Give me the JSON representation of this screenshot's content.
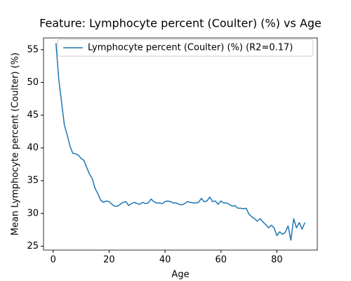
{
  "chart_data": {
    "type": "line",
    "title": "Feature: Lymphocyte percent (Coulter) (%) vs Age",
    "xlabel": "Age",
    "ylabel": "Mean Lymphocyte percent (Coulter) (%)",
    "x": [
      1,
      2,
      3,
      4,
      5,
      6,
      7,
      8,
      9,
      10,
      11,
      12,
      13,
      14,
      15,
      16,
      17,
      18,
      19,
      20,
      21,
      22,
      23,
      24,
      25,
      26,
      27,
      28,
      29,
      30,
      31,
      32,
      33,
      34,
      35,
      36,
      37,
      38,
      39,
      40,
      41,
      42,
      43,
      44,
      45,
      46,
      47,
      48,
      49,
      50,
      51,
      52,
      53,
      54,
      55,
      56,
      57,
      58,
      59,
      60,
      61,
      62,
      63,
      64,
      65,
      66,
      67,
      68,
      69,
      70,
      71,
      72,
      73,
      74,
      75,
      76,
      77,
      78,
      79,
      80,
      81,
      82,
      83,
      84,
      85,
      86,
      87,
      88,
      89,
      90
    ],
    "series": [
      {
        "name": "Lymphocyte percent (Coulter) (%) (R2=0.17)",
        "color": "#1f77b4",
        "values": [
          56,
          50.5,
          47,
          43.5,
          42,
          40.3,
          39.2,
          39.1,
          38.9,
          38.4,
          38.1,
          37,
          36,
          35.3,
          33.8,
          33,
          32,
          31.7,
          31.9,
          31.8,
          31.4,
          31.1,
          31.1,
          31.4,
          31.7,
          31.8,
          31.2,
          31.5,
          31.7,
          31.5,
          31.4,
          31.7,
          31.5,
          31.6,
          32.2,
          31.8,
          31.6,
          31.6,
          31.5,
          31.8,
          31.9,
          31.8,
          31.6,
          31.6,
          31.4,
          31.3,
          31.5,
          31.8,
          31.7,
          31.6,
          31.6,
          31.7,
          32.3,
          31.8,
          31.9,
          32.5,
          31.8,
          31.9,
          31.4,
          31.9,
          31.6,
          31.6,
          31.4,
          31.1,
          31.2,
          30.8,
          30.8,
          30.7,
          30.8,
          29.9,
          29.5,
          29.2,
          28.8,
          29.2,
          28.7,
          28.3,
          27.8,
          28.2,
          27.8,
          26.6,
          27.2,
          26.8,
          27.1,
          28.1,
          25.9,
          29.2,
          27.8,
          28.6,
          27.6,
          28.6
        ]
      }
    ],
    "xlim": [
      -3.45,
      94.45
    ],
    "ylim": [
      24.4,
      56.8
    ],
    "xticks": [
      0,
      20,
      40,
      60,
      80
    ],
    "yticks": [
      25,
      30,
      35,
      40,
      45,
      50,
      55
    ],
    "legend": "upper right",
    "grid": false
  }
}
